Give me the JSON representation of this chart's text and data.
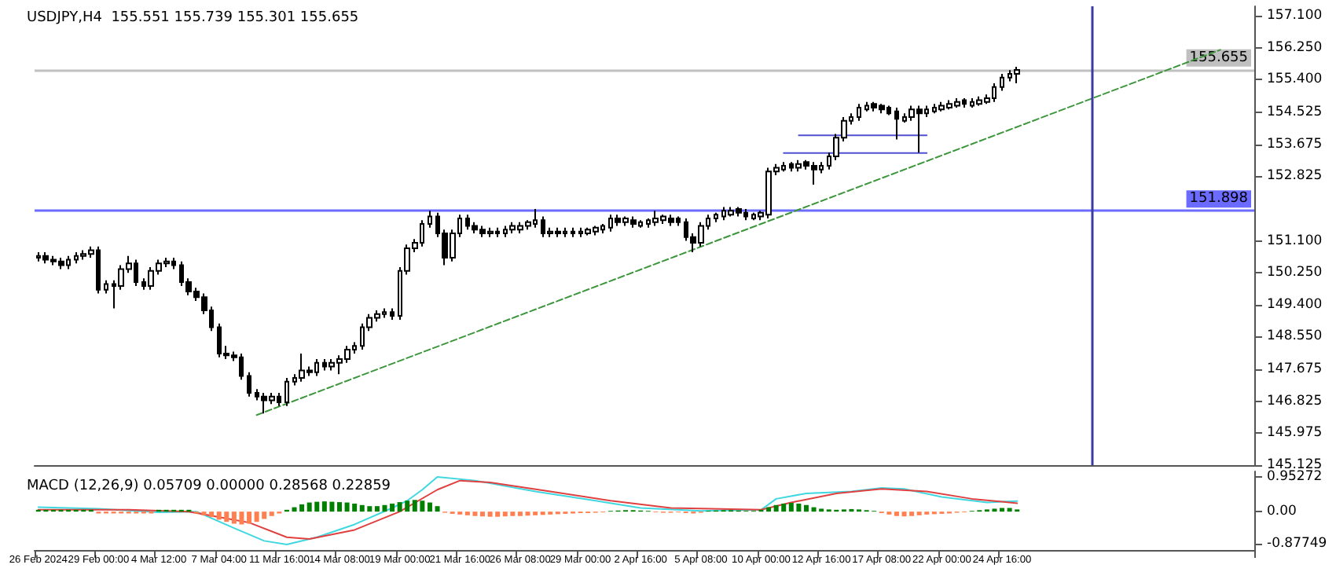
{
  "chart_data": [
    {
      "type": "candlestick",
      "title": "USDJPY,H4  155.551 155.739 155.301 155.655",
      "color": "#000000",
      "marker": "none",
      "tick_labels": "y",
      "categories": [
        null,
        null,
        null,
        null,
        null,
        null,
        null,
        null,
        null,
        null,
        null,
        null,
        null,
        null,
        null,
        null,
        null,
        null,
        null,
        null,
        null,
        null,
        null,
        null,
        null,
        null,
        null,
        null,
        null,
        null,
        null,
        null,
        null,
        null,
        null,
        null,
        null,
        null,
        null,
        null,
        null,
        null,
        null,
        null,
        null,
        null,
        null,
        null,
        null,
        null,
        null,
        null,
        null,
        null,
        null,
        null,
        null,
        null,
        null,
        null,
        null,
        null,
        null,
        null,
        null,
        null,
        null,
        null,
        null,
        null,
        null,
        null,
        null,
        null,
        null,
        null,
        null,
        null,
        null,
        null,
        null,
        null,
        null,
        null,
        null,
        null,
        null,
        null,
        null,
        null,
        null,
        null,
        null,
        null,
        null,
        null,
        null,
        null,
        null,
        null,
        null,
        null,
        null,
        null,
        null,
        null,
        null,
        null,
        null,
        null,
        null,
        null,
        null,
        null,
        null,
        null,
        null,
        null,
        null,
        null,
        null,
        null,
        null,
        null,
        null,
        null,
        null,
        null,
        null,
        null,
        null,
        null,
        null,
        null,
        null,
        null,
        null,
        null,
        null,
        null,
        null,
        null,
        null,
        null,
        null,
        null,
        null,
        null,
        null,
        null,
        null,
        null,
        null,
        null,
        null,
        null,
        null,
        null,
        null,
        null,
        null,
        null
      ],
      "ohlc": [
        [
          150.65,
          150.8,
          150.55,
          150.7
        ],
        [
          150.7,
          150.8,
          150.5,
          150.6
        ],
        [
          150.6,
          150.7,
          150.45,
          150.55
        ],
        [
          150.55,
          150.65,
          150.35,
          150.45
        ],
        [
          150.45,
          150.7,
          150.35,
          150.6
        ],
        [
          150.6,
          150.8,
          150.5,
          150.7
        ],
        [
          150.7,
          150.85,
          150.6,
          150.75
        ],
        [
          150.75,
          150.95,
          150.65,
          150.85
        ],
        [
          150.85,
          150.95,
          149.7,
          149.8
        ],
        [
          149.8,
          150.05,
          149.7,
          149.95
        ],
        [
          149.95,
          150.05,
          149.3,
          149.9
        ],
        [
          149.9,
          150.45,
          149.8,
          150.35
        ],
        [
          150.35,
          150.7,
          150.25,
          150.5
        ],
        [
          150.5,
          150.6,
          149.9,
          150.0
        ],
        [
          150.0,
          150.1,
          149.8,
          149.9
        ],
        [
          149.9,
          150.4,
          149.8,
          150.3
        ],
        [
          150.3,
          150.6,
          150.2,
          150.5
        ],
        [
          150.5,
          150.65,
          150.4,
          150.55
        ],
        [
          150.55,
          150.65,
          150.35,
          150.45
        ],
        [
          150.45,
          150.55,
          149.9,
          150.0
        ],
        [
          150.0,
          150.1,
          149.65,
          149.75
        ],
        [
          149.75,
          149.85,
          149.5,
          149.6
        ],
        [
          149.6,
          149.7,
          149.15,
          149.25
        ],
        [
          149.25,
          149.35,
          148.7,
          148.8
        ],
        [
          148.8,
          148.9,
          148.0,
          148.1
        ],
        [
          148.1,
          148.3,
          147.95,
          148.05
        ],
        [
          148.05,
          148.15,
          147.9,
          148.0
        ],
        [
          148.0,
          148.1,
          147.4,
          147.5
        ],
        [
          147.5,
          147.6,
          146.95,
          147.05
        ],
        [
          147.05,
          147.15,
          146.85,
          146.95
        ],
        [
          146.95,
          147.05,
          146.5,
          146.85
        ],
        [
          146.85,
          147.05,
          146.75,
          146.95
        ],
        [
          146.95,
          147.05,
          146.7,
          146.8
        ],
        [
          146.8,
          147.45,
          146.7,
          147.35
        ],
        [
          147.35,
          147.55,
          147.25,
          147.45
        ],
        [
          147.45,
          148.1,
          147.35,
          147.65
        ],
        [
          147.65,
          147.75,
          147.5,
          147.6
        ],
        [
          147.6,
          147.95,
          147.5,
          147.85
        ],
        [
          147.85,
          147.95,
          147.65,
          147.75
        ],
        [
          147.75,
          147.95,
          147.65,
          147.85
        ],
        [
          147.85,
          148.05,
          147.55,
          147.95
        ],
        [
          147.95,
          148.3,
          147.85,
          148.2
        ],
        [
          148.2,
          148.4,
          148.1,
          148.3
        ],
        [
          148.3,
          148.9,
          148.2,
          148.8
        ],
        [
          148.8,
          149.15,
          148.7,
          149.05
        ],
        [
          149.05,
          149.25,
          148.95,
          149.15
        ],
        [
          149.15,
          149.3,
          149.05,
          149.2
        ],
        [
          149.2,
          149.3,
          149.0,
          149.1
        ],
        [
          149.1,
          150.4,
          149.0,
          150.3
        ],
        [
          150.3,
          151.0,
          150.2,
          150.9
        ],
        [
          150.9,
          151.15,
          150.8,
          151.05
        ],
        [
          151.05,
          151.65,
          150.95,
          151.55
        ],
        [
          151.55,
          151.9,
          151.45,
          151.75
        ],
        [
          151.75,
          151.85,
          151.2,
          151.3
        ],
        [
          151.3,
          151.4,
          150.45,
          150.65
        ],
        [
          150.65,
          151.4,
          150.55,
          151.3
        ],
        [
          151.3,
          151.8,
          151.2,
          151.7
        ],
        [
          151.7,
          151.8,
          151.4,
          151.5
        ],
        [
          151.5,
          151.6,
          151.3,
          151.4
        ],
        [
          151.4,
          151.5,
          151.2,
          151.3
        ],
        [
          151.3,
          151.45,
          151.2,
          151.35
        ],
        [
          151.35,
          151.45,
          151.2,
          151.3
        ],
        [
          151.3,
          151.5,
          151.2,
          151.4
        ],
        [
          151.4,
          151.6,
          151.3,
          151.5
        ],
        [
          151.4,
          151.6,
          151.3,
          151.5
        ],
        [
          151.5,
          151.65,
          151.4,
          151.6
        ],
        [
          151.55,
          151.95,
          151.45,
          151.65
        ],
        [
          151.65,
          151.75,
          151.2,
          151.3
        ],
        [
          151.3,
          151.45,
          151.2,
          151.35
        ],
        [
          151.35,
          151.45,
          151.2,
          151.3
        ],
        [
          151.3,
          151.45,
          151.2,
          151.35
        ],
        [
          151.35,
          151.45,
          151.2,
          151.3
        ],
        [
          151.3,
          151.45,
          151.2,
          151.35
        ],
        [
          151.3,
          151.45,
          151.25,
          151.4
        ],
        [
          151.35,
          151.5,
          151.25,
          151.45
        ],
        [
          151.4,
          151.55,
          151.3,
          151.5
        ],
        [
          151.45,
          151.8,
          151.35,
          151.7
        ],
        [
          151.7,
          151.8,
          151.5,
          151.6
        ],
        [
          151.6,
          151.75,
          151.5,
          151.7
        ],
        [
          151.65,
          151.75,
          151.45,
          151.55
        ],
        [
          151.5,
          151.65,
          151.45,
          151.6
        ],
        [
          151.55,
          151.7,
          151.45,
          151.65
        ],
        [
          151.6,
          151.9,
          151.5,
          151.7
        ],
        [
          151.65,
          151.8,
          151.55,
          151.75
        ],
        [
          151.7,
          151.8,
          151.5,
          151.6
        ],
        [
          151.7,
          151.75,
          151.5,
          151.6
        ],
        [
          151.6,
          151.7,
          151.1,
          151.2
        ],
        [
          151.2,
          151.3,
          150.8,
          151.05
        ],
        [
          151.05,
          151.6,
          150.95,
          151.5
        ],
        [
          151.5,
          151.8,
          151.4,
          151.7
        ],
        [
          151.7,
          151.85,
          151.6,
          151.8
        ],
        [
          151.75,
          152.0,
          151.65,
          151.9
        ],
        [
          151.8,
          152.0,
          151.75,
          151.9
        ],
        [
          151.95,
          152.0,
          151.75,
          151.85
        ],
        [
          151.85,
          151.95,
          151.65,
          151.75
        ],
        [
          151.7,
          151.85,
          151.65,
          151.8
        ],
        [
          151.75,
          151.9,
          151.65,
          151.85
        ],
        [
          151.8,
          153.05,
          151.7,
          152.95
        ],
        [
          152.95,
          153.15,
          152.85,
          153.05
        ],
        [
          153.0,
          153.2,
          152.95,
          153.1
        ],
        [
          153.15,
          153.2,
          152.95,
          153.05
        ],
        [
          153.05,
          153.25,
          152.95,
          153.15
        ],
        [
          153.2,
          153.25,
          153.0,
          153.1
        ],
        [
          153.1,
          153.2,
          152.6,
          153.0
        ],
        [
          153.0,
          153.2,
          152.9,
          153.1
        ],
        [
          153.1,
          153.45,
          153.0,
          153.35
        ],
        [
          153.35,
          153.95,
          153.25,
          153.85
        ],
        [
          153.85,
          154.4,
          153.75,
          154.3
        ],
        [
          154.3,
          154.5,
          154.2,
          154.4
        ],
        [
          154.4,
          154.75,
          154.3,
          154.65
        ],
        [
          154.6,
          154.8,
          154.55,
          154.7
        ],
        [
          154.75,
          154.8,
          154.55,
          154.65
        ],
        [
          154.7,
          154.75,
          154.5,
          154.6
        ],
        [
          154.65,
          154.7,
          154.45,
          154.5
        ],
        [
          154.55,
          154.65,
          153.8,
          154.35
        ],
        [
          154.3,
          154.5,
          154.25,
          154.4
        ],
        [
          154.4,
          154.7,
          154.3,
          154.6
        ],
        [
          154.6,
          154.7,
          153.45,
          154.5
        ],
        [
          154.5,
          154.7,
          154.4,
          154.6
        ],
        [
          154.55,
          154.75,
          154.5,
          154.65
        ],
        [
          154.6,
          154.8,
          154.55,
          154.7
        ],
        [
          154.65,
          154.85,
          154.6,
          154.75
        ],
        [
          154.7,
          154.9,
          154.65,
          154.8
        ],
        [
          154.85,
          154.9,
          154.65,
          154.75
        ],
        [
          154.7,
          154.9,
          154.65,
          154.8
        ],
        [
          154.75,
          154.95,
          154.7,
          154.85
        ],
        [
          154.8,
          155.0,
          154.75,
          154.9
        ],
        [
          154.9,
          155.3,
          154.8,
          155.2
        ],
        [
          155.2,
          155.55,
          155.1,
          155.45
        ],
        [
          155.45,
          155.65,
          155.35,
          155.55
        ],
        [
          155.551,
          155.739,
          155.301,
          155.655
        ],
        null,
        null,
        null,
        null,
        null,
        null,
        null,
        null,
        null,
        null,
        null,
        null,
        null,
        null,
        null,
        null,
        null,
        null,
        null,
        null,
        null,
        null,
        null,
        null,
        null,
        null,
        null,
        null,
        null,
        null,
        null
      ],
      "series": [
        {
          "type": "line",
          "color": "#3c963c",
          "line_style": "dashed",
          "values": [
            null,
            null,
            null,
            null,
            null,
            null,
            null,
            null,
            null,
            null,
            null,
            null,
            null,
            null,
            null,
            null,
            null,
            null,
            null,
            null,
            null,
            null,
            null,
            null,
            null,
            null,
            null,
            null,
            null,
            146.46,
            null,
            null,
            null,
            null,
            null,
            null,
            null,
            null,
            null,
            null,
            null,
            null,
            null,
            null,
            null,
            null,
            null,
            null,
            null,
            null,
            null,
            null,
            null,
            null,
            null,
            null,
            null,
            null,
            null,
            null,
            null,
            null,
            null,
            null,
            null,
            null,
            null,
            null,
            null,
            null,
            null,
            null,
            null,
            null,
            null,
            null,
            null,
            null,
            null,
            null,
            null,
            null,
            null,
            null,
            null,
            null,
            null,
            null,
            null,
            null,
            null,
            null,
            null,
            null,
            null,
            null,
            null,
            null,
            null,
            null,
            null,
            null,
            null,
            null,
            null,
            null,
            null,
            null,
            null,
            null,
            null,
            null,
            null,
            null,
            null,
            null,
            null,
            null,
            null,
            null,
            null,
            null,
            null,
            null,
            null,
            null,
            null,
            null,
            null,
            null,
            null,
            null,
            null,
            null,
            null,
            null,
            null,
            null,
            null,
            null,
            null,
            null,
            null,
            null,
            null,
            null,
            null,
            null,
            null,
            null,
            null,
            null,
            null,
            null,
            null,
            null,
            null,
            156.19,
            null,
            null,
            null,
            null
          ]
        },
        {
          "type": "line",
          "color": "#5050d0",
          "line_style": "solid",
          "values": [
            null,
            null,
            null,
            null,
            null,
            null,
            null,
            null,
            null,
            null,
            null,
            null,
            null,
            null,
            null,
            null,
            null,
            null,
            null,
            null,
            null,
            null,
            null,
            null,
            null,
            null,
            null,
            null,
            null,
            null,
            null,
            null,
            null,
            null,
            null,
            null,
            null,
            null,
            null,
            null,
            null,
            null,
            null,
            null,
            null,
            null,
            null,
            null,
            null,
            null,
            null,
            null,
            null,
            null,
            null,
            null,
            null,
            null,
            null,
            null,
            null,
            null,
            null,
            null,
            null,
            null,
            null,
            null,
            null,
            null,
            null,
            null,
            null,
            null,
            null,
            null,
            null,
            null,
            null,
            null,
            null,
            null,
            null,
            null,
            null,
            null,
            null,
            null,
            null,
            null,
            null,
            null,
            null,
            null,
            null,
            null,
            null,
            null,
            null,
            null,
            null,
            153.91,
            null,
            null,
            null,
            null,
            null,
            null,
            null,
            null,
            null,
            null,
            null,
            null,
            null,
            null,
            null,
            null,
            153.91,
            null,
            null,
            null,
            null,
            null,
            null,
            null,
            null,
            null,
            null,
            null,
            null,
            null,
            null,
            null,
            null,
            null,
            null,
            null,
            null,
            null,
            null,
            null,
            null,
            null,
            null,
            null,
            null,
            null,
            null,
            null,
            null,
            null,
            null,
            null,
            null,
            null,
            null,
            null,
            null,
            null,
            null,
            null
          ]
        },
        {
          "type": "line",
          "color": "#5050d0",
          "line_style": "solid",
          "values": [
            null,
            null,
            null,
            null,
            null,
            null,
            null,
            null,
            null,
            null,
            null,
            null,
            null,
            null,
            null,
            null,
            null,
            null,
            null,
            null,
            null,
            null,
            null,
            null,
            null,
            null,
            null,
            null,
            null,
            null,
            null,
            null,
            null,
            null,
            null,
            null,
            null,
            null,
            null,
            null,
            null,
            null,
            null,
            null,
            null,
            null,
            null,
            null,
            null,
            null,
            null,
            null,
            null,
            null,
            null,
            null,
            null,
            null,
            null,
            null,
            null,
            null,
            null,
            null,
            null,
            null,
            null,
            null,
            null,
            null,
            null,
            null,
            null,
            null,
            null,
            null,
            null,
            null,
            null,
            null,
            null,
            null,
            null,
            null,
            null,
            null,
            null,
            null,
            null,
            null,
            null,
            null,
            null,
            null,
            null,
            null,
            null,
            null,
            null,
            153.44,
            null,
            null,
            null,
            null,
            null,
            null,
            null,
            null,
            null,
            null,
            null,
            null,
            null,
            null,
            null,
            null,
            null,
            null,
            153.44,
            null,
            null,
            null,
            null,
            null,
            null,
            null,
            null,
            null,
            null,
            null,
            null,
            null,
            null,
            null,
            null,
            null,
            null,
            null,
            null,
            null,
            null,
            null,
            null,
            null,
            null,
            null,
            null,
            null,
            null,
            null,
            null,
            null,
            null,
            null,
            null,
            null,
            null,
            null,
            null,
            null,
            null,
            null
          ]
        }
      ],
      "ref_lines": [
        {
          "axis": "y",
          "value": 151.898,
          "label": "151.898",
          "color": "#6b6bff"
        },
        {
          "axis": "y",
          "value": 155.655,
          "label": "155.655",
          "color": "#c0c0c0"
        }
      ],
      "ylim": [
        145.125,
        157.35
      ],
      "yticks": [
        145.125,
        145.975,
        146.825,
        147.675,
        {
          "value": 148.55,
          "label": "148.550"
        },
        {
          "value": 149.4,
          "label": "149.400"
        },
        {
          "value": 150.25,
          "label": "150.250"
        },
        {
          "value": 151.1,
          "label": "151.100"
        },
        152.825,
        153.675,
        154.525,
        {
          "value": 155.4,
          "label": "155.400"
        },
        {
          "value": 156.25,
          "label": "156.250"
        },
        {
          "value": 157.1,
          "label": "157.100"
        }
      ]
    },
    {
      "type": "bar",
      "title": "MACD (12,26,9) 0.05709 0.00000 0.28568 0.22859",
      "marker": "none",
      "categories": [
        "26 Feb 2024",
        null,
        null,
        null,
        null,
        null,
        null,
        null,
        "29 Feb 00:00",
        null,
        null,
        null,
        null,
        null,
        null,
        null,
        "4 Mar 12:00",
        null,
        null,
        null,
        null,
        null,
        null,
        null,
        "7 Mar 04:00",
        null,
        null,
        null,
        null,
        null,
        null,
        null,
        "11 Mar 16:00",
        null,
        null,
        null,
        null,
        null,
        null,
        null,
        "14 Mar 08:00",
        null,
        null,
        null,
        null,
        null,
        null,
        null,
        "19 Mar 00:00",
        null,
        null,
        null,
        null,
        null,
        null,
        null,
        "21 Mar 16:00",
        null,
        null,
        null,
        null,
        null,
        null,
        null,
        "26 Mar 08:00",
        null,
        null,
        null,
        null,
        null,
        null,
        null,
        "29 Mar 00:00",
        null,
        null,
        null,
        null,
        null,
        null,
        null,
        "2 Apr 16:00",
        null,
        null,
        null,
        null,
        null,
        null,
        null,
        "5 Apr 08:00",
        null,
        null,
        null,
        null,
        null,
        null,
        null,
        "10 Apr 00:00",
        null,
        null,
        null,
        null,
        null,
        null,
        null,
        "12 Apr 16:00",
        null,
        null,
        null,
        null,
        null,
        null,
        null,
        "17 Apr 08:00",
        null,
        null,
        null,
        null,
        null,
        null,
        null,
        "22 Apr 00:00",
        null,
        null,
        null,
        null,
        null,
        null,
        null,
        "24 Apr 16:00",
        null,
        null,
        null,
        null,
        null,
        null,
        null,
        null,
        null,
        null,
        null,
        null,
        null,
        null,
        null,
        null,
        null,
        null,
        null,
        null,
        null,
        null,
        null,
        null,
        null,
        null,
        null,
        null,
        null,
        null,
        null,
        null,
        null
      ],
      "series": [
        {
          "type": "bar",
          "color": "#008000",
          "values": [
            0.05,
            0.05,
            0.05,
            0.05,
            0.05,
            0.05,
            0.05,
            0.05,
            null,
            null,
            null,
            null,
            null,
            null,
            null,
            null,
            0.05,
            0.05,
            0.05,
            0.05,
            0.05,
            null,
            null,
            null,
            null,
            null,
            null,
            null,
            null,
            null,
            null,
            null,
            null,
            0.05,
            0.12,
            0.2,
            0.25,
            0.27,
            0.28,
            0.27,
            0.26,
            0.25,
            0.22,
            0.18,
            0.15,
            0.15,
            0.18,
            0.22,
            0.26,
            0.3,
            0.32,
            0.3,
            0.25,
            0.15,
            null,
            null,
            null,
            null,
            null,
            null,
            null,
            null,
            null,
            null,
            null,
            null,
            null,
            null,
            null,
            null,
            null,
            null,
            null,
            null,
            null,
            null,
            0.02,
            0.03,
            0.04,
            0.04,
            0.03,
            0.02,
            null,
            null,
            null,
            null,
            null,
            null,
            null,
            0.02,
            0.03,
            0.04,
            0.04,
            0.03,
            0.02,
            0.02,
            0.05,
            0.12,
            0.18,
            0.22,
            0.24,
            0.22,
            0.18,
            0.12,
            0.08,
            0.06,
            0.05,
            0.06,
            0.07,
            0.06,
            0.04,
            0.02,
            null,
            null,
            null,
            null,
            null,
            null,
            null,
            null,
            null,
            null,
            null,
            null,
            0.02,
            0.04,
            0.06,
            0.08,
            0.1,
            0.1,
            0.06,
            null,
            null,
            null,
            null,
            null,
            null,
            null,
            null,
            null,
            null,
            null,
            null,
            null,
            null,
            null,
            null,
            null,
            null,
            null,
            null,
            null,
            null,
            null,
            null,
            null,
            null,
            null,
            null,
            null,
            null,
            null
          ]
        },
        {
          "type": "bar",
          "color": "#ff7f50",
          "values": [
            null,
            null,
            null,
            null,
            null,
            null,
            null,
            null,
            -0.05,
            -0.05,
            -0.05,
            -0.05,
            -0.05,
            -0.05,
            -0.05,
            -0.05,
            null,
            null,
            null,
            null,
            null,
            -0.05,
            -0.1,
            -0.15,
            -0.22,
            -0.28,
            -0.33,
            -0.35,
            -0.33,
            -0.28,
            -0.2,
            -0.12,
            -0.05,
            null,
            null,
            null,
            null,
            null,
            null,
            null,
            null,
            null,
            null,
            null,
            null,
            null,
            null,
            null,
            null,
            null,
            null,
            null,
            null,
            null,
            -0.03,
            -0.06,
            -0.08,
            -0.1,
            -0.12,
            -0.13,
            -0.14,
            -0.14,
            -0.13,
            -0.12,
            -0.12,
            -0.11,
            -0.1,
            -0.09,
            -0.08,
            -0.07,
            -0.06,
            -0.05,
            -0.04,
            -0.04,
            -0.03,
            -0.02,
            null,
            null,
            null,
            null,
            null,
            null,
            -0.02,
            -0.03,
            -0.03,
            -0.02,
            -0.04,
            -0.05,
            -0.03,
            null,
            null,
            null,
            null,
            null,
            null,
            null,
            null,
            null,
            null,
            null,
            null,
            null,
            null,
            null,
            null,
            null,
            null,
            null,
            null,
            null,
            null,
            null,
            -0.04,
            -0.08,
            -0.12,
            -0.13,
            -0.12,
            -0.1,
            -0.08,
            -0.07,
            -0.06,
            -0.05,
            -0.03,
            -0.02,
            null,
            null,
            null,
            null,
            null,
            null,
            null,
            null,
            null,
            null,
            null,
            null,
            null,
            null,
            null,
            null,
            null,
            null,
            null,
            null,
            null,
            null,
            null,
            null,
            null,
            null,
            null,
            null,
            null,
            null,
            null,
            null,
            null,
            null,
            null,
            null,
            null,
            null
          ]
        },
        {
          "type": "line",
          "color": "#40d8e0",
          "line_style": "solid",
          "values": [
            0.12,
            null,
            null,
            null,
            null,
            null,
            null,
            null,
            0.08,
            null,
            null,
            null,
            null,
            null,
            null,
            null,
            -0.02,
            null,
            null,
            null,
            null,
            0,
            null,
            null,
            null,
            null,
            -0.45,
            null,
            null,
            null,
            -0.8,
            null,
            null,
            -0.9,
            null,
            null,
            null,
            -0.7,
            null,
            null,
            null,
            null,
            -0.35,
            null,
            null,
            null,
            null,
            0.1,
            null,
            0.3,
            null,
            0.6,
            null,
            0.95,
            null,
            null,
            null,
            null,
            0.85,
            null,
            null,
            null,
            null,
            null,
            null,
            null,
            0.55,
            null,
            null,
            null,
            null,
            null,
            null,
            null,
            0.3,
            null,
            null,
            null,
            null,
            null,
            0.1,
            null,
            null,
            null,
            null,
            null,
            null,
            null,
            0.02,
            null,
            null,
            null,
            null,
            null,
            null,
            null,
            0.05,
            null,
            0.35,
            null,
            null,
            null,
            0.5,
            null,
            null,
            null,
            null,
            null,
            0.55,
            null,
            null,
            null,
            0.65,
            null,
            null,
            0.62,
            null,
            null,
            null,
            null,
            0.4,
            null,
            null,
            null,
            null,
            null,
            0.25,
            null,
            null,
            null,
            0.29,
            null,
            null,
            null,
            null,
            null,
            null,
            null,
            null,
            null,
            null,
            null,
            null,
            null,
            null,
            null,
            null,
            null,
            null,
            null,
            null,
            null,
            null,
            null,
            null,
            null,
            null,
            null,
            null,
            null,
            null,
            null
          ]
        },
        {
          "type": "line",
          "color": "#e04040",
          "line_style": "solid",
          "values": [
            0.05,
            null,
            null,
            null,
            null,
            null,
            null,
            null,
            null,
            null,
            null,
            null,
            0.05,
            null,
            null,
            null,
            null,
            null,
            null,
            null,
            0,
            null,
            null,
            null,
            null,
            null,
            null,
            null,
            -0.3,
            null,
            null,
            null,
            null,
            -0.7,
            null,
            null,
            -0.75,
            null,
            null,
            null,
            null,
            null,
            -0.5,
            null,
            null,
            null,
            null,
            null,
            0,
            null,
            null,
            null,
            null,
            0.6,
            null,
            null,
            0.85,
            null,
            null,
            null,
            0.8,
            null,
            null,
            null,
            null,
            null,
            null,
            null,
            0.55,
            null,
            null,
            null,
            null,
            null,
            null,
            null,
            0.3,
            null,
            null,
            null,
            null,
            null,
            null,
            null,
            0.1,
            null,
            null,
            null,
            null,
            null,
            null,
            null,
            null,
            null,
            null,
            null,
            0.05,
            null,
            null,
            null,
            0.25,
            null,
            null,
            null,
            null,
            null,
            0.5,
            null,
            null,
            null,
            null,
            null,
            0.62,
            null,
            null,
            null,
            null,
            null,
            0.55,
            null,
            null,
            null,
            null,
            null,
            0.35,
            null,
            null,
            null,
            null,
            null,
            0.23,
            null,
            null,
            null,
            null,
            null,
            null,
            null,
            null,
            null,
            null,
            null,
            null,
            null,
            null,
            null,
            null,
            null,
            null,
            null,
            null,
            null,
            null,
            null,
            null,
            null,
            null,
            null,
            null,
            null,
            null,
            null
          ]
        }
      ],
      "ylim": [
        -1.05,
        1.1
      ],
      "yticks": [
        0.95272,
        {
          "value": 0,
          "label": "0.00"
        },
        -0.87749
      ]
    }
  ]
}
